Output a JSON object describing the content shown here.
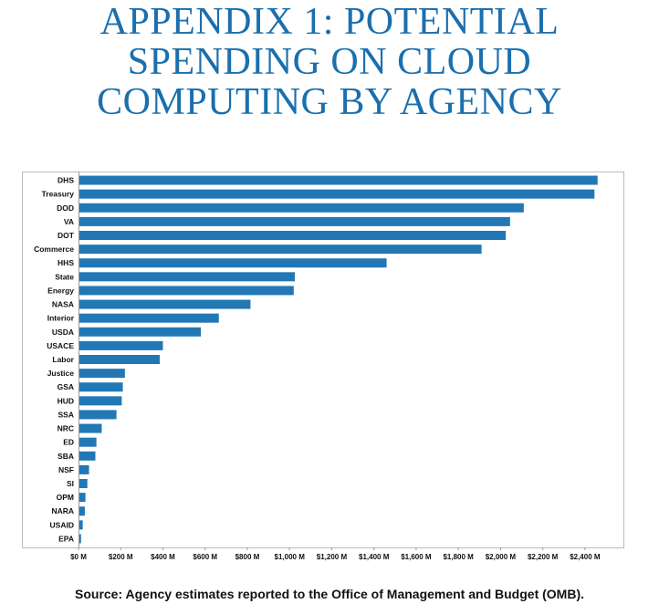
{
  "page": {
    "title_lines": [
      "APPENDIX 1: POTENTIAL",
      "SPENDING ON CLOUD",
      "COMPUTING BY AGENCY"
    ],
    "source": "Source: Agency estimates reported to the Office of Management and Budget (OMB)."
  },
  "colors": {
    "title": "#1a6fae",
    "bar": "#2278b5",
    "axis": "#999999",
    "text": "#111111"
  },
  "chart_data": {
    "type": "bar",
    "orientation": "horizontal",
    "categories": [
      "DHS",
      "Treasury",
      "DOD",
      "VA",
      "DOT",
      "Commerce",
      "HHS",
      "State",
      "Energy",
      "NASA",
      "Interior",
      "USDA",
      "USACE",
      "Labor",
      "Justice",
      "GSA",
      "HUD",
      "SSA",
      "NRC",
      "ED",
      "SBA",
      "NSF",
      "SI",
      "OPM",
      "NARA",
      "USAID",
      "EPA"
    ],
    "values": [
      2460,
      2445,
      2110,
      2045,
      2025,
      1910,
      1460,
      1025,
      1020,
      815,
      665,
      580,
      400,
      385,
      220,
      210,
      205,
      180,
      110,
      85,
      80,
      50,
      42,
      33,
      30,
      20,
      12
    ],
    "unit": "$M",
    "xlim": [
      0,
      2550
    ],
    "x_ticks": [
      0,
      200,
      400,
      600,
      800,
      1000,
      1200,
      1400,
      1600,
      1800,
      2000,
      2200,
      2400
    ],
    "x_tick_labels": [
      "$0 M",
      "$200 M",
      "$400 M",
      "$600 M",
      "$800 M",
      "$1,000 M",
      "$1,200 M",
      "$1,400 M",
      "$1,600 M",
      "$1,800 M",
      "$2,000 M",
      "$2,200 M",
      "$2,400 M"
    ],
    "grid": false,
    "legend": "none",
    "xlabel": "",
    "ylabel": ""
  }
}
